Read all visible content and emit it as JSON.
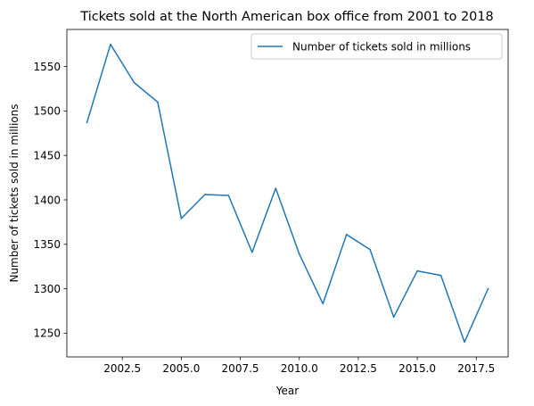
{
  "chart_data": {
    "type": "line",
    "title": "Tickets sold at the North American box office from 2001 to 2018",
    "xlabel": "Year",
    "ylabel": "Number of tickets sold in millions",
    "x": [
      2001,
      2002,
      2003,
      2004,
      2005,
      2006,
      2007,
      2008,
      2009,
      2010,
      2011,
      2012,
      2013,
      2014,
      2015,
      2016,
      2017,
      2018
    ],
    "series": [
      {
        "name": "Number of tickets sold in millions",
        "color": "#1f77b4",
        "values": [
          1487,
          1575,
          1532,
          1510,
          1379,
          1406,
          1405,
          1341,
          1413,
          1339,
          1283,
          1361,
          1344,
          1268,
          1320,
          1315,
          1240,
          1300
        ]
      }
    ],
    "xlim": [
      2000.15,
      2018.85
    ],
    "ylim": [
      1223.25,
      1591.75
    ],
    "xticks": [
      2002.5,
      2005.0,
      2007.5,
      2010.0,
      2012.5,
      2015.0,
      2017.5
    ],
    "xtick_labels": [
      "2002.5",
      "2005.0",
      "2007.5",
      "2010.0",
      "2012.5",
      "2015.0",
      "2017.5"
    ],
    "yticks": [
      1250,
      1300,
      1350,
      1400,
      1450,
      1500,
      1550
    ],
    "ytick_labels": [
      "1250",
      "1300",
      "1350",
      "1400",
      "1450",
      "1500",
      "1550"
    ],
    "grid": false,
    "legend_position": "top-right"
  }
}
